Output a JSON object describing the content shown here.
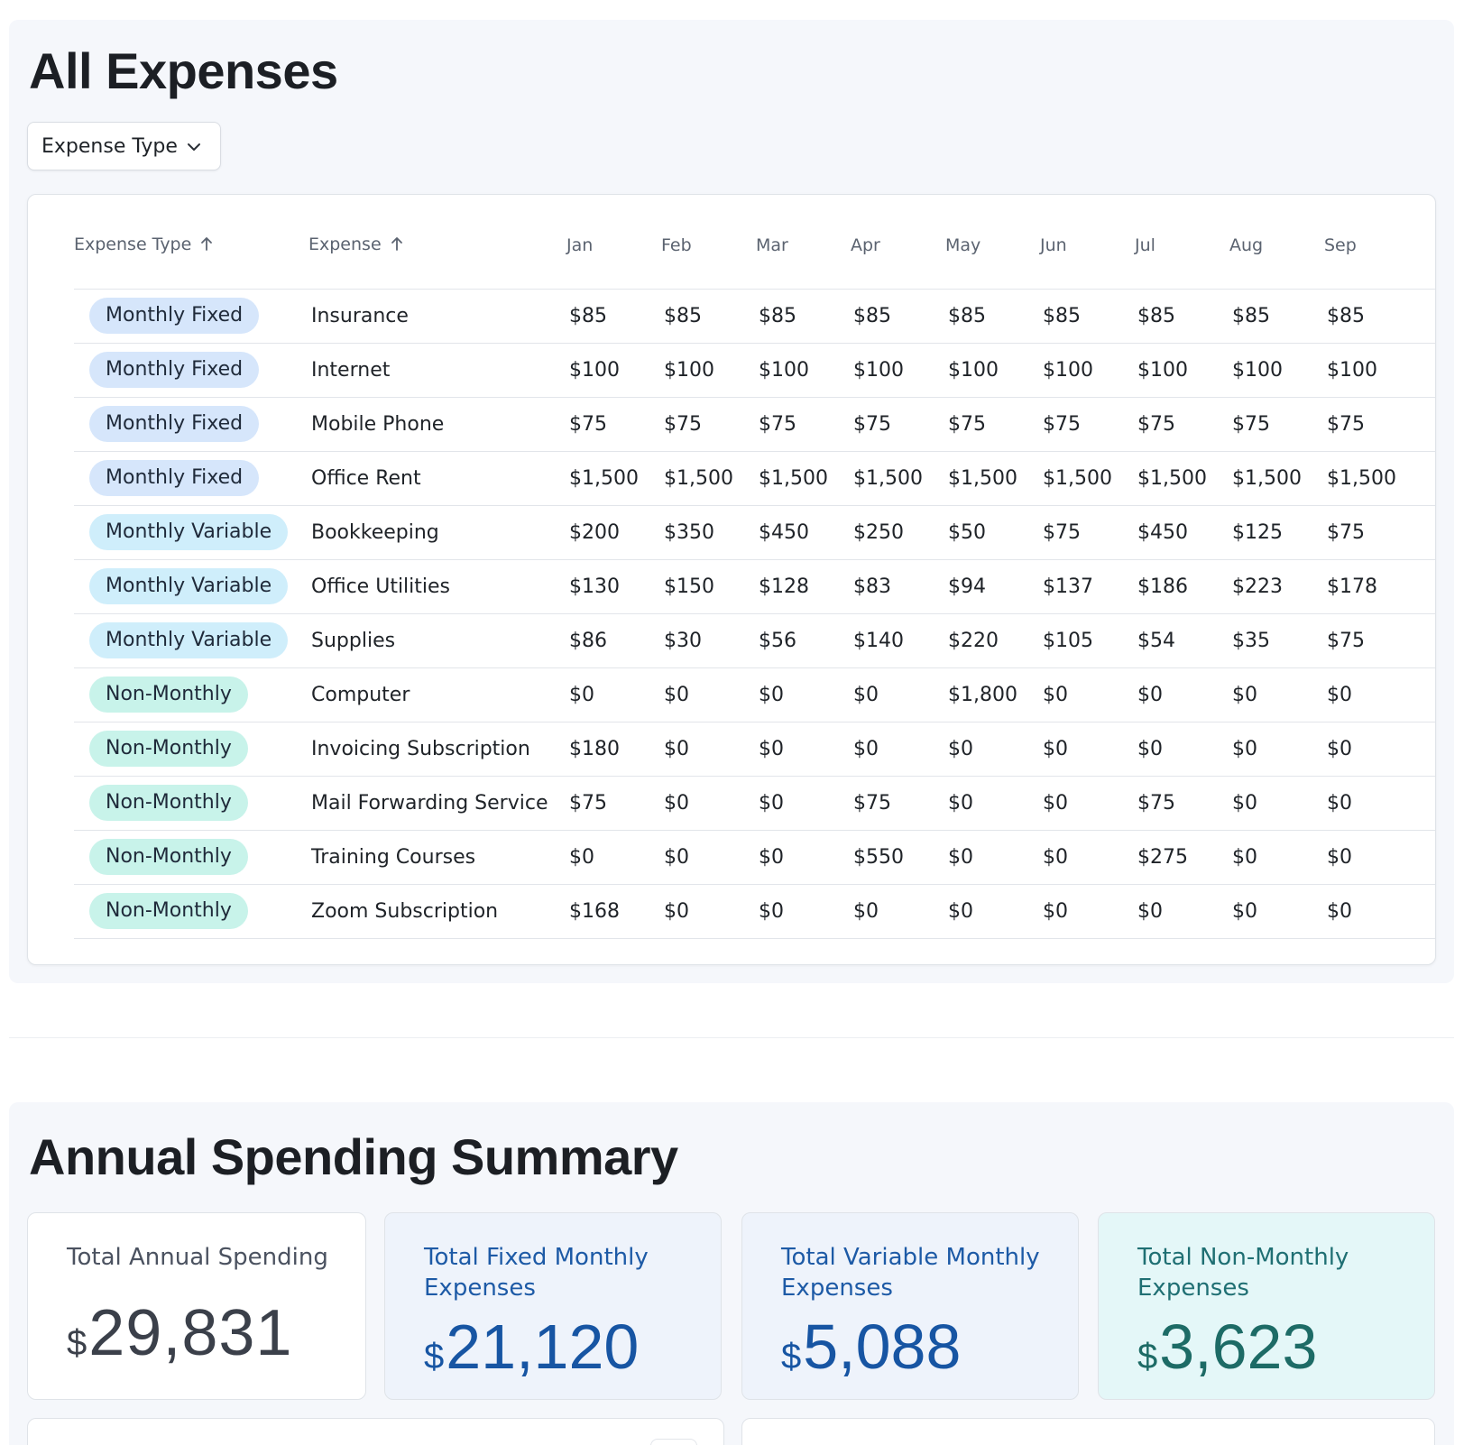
{
  "expenses": {
    "title": "All Expenses",
    "filter_label": "Expense Type",
    "columns": {
      "type": "Expense Type",
      "expense": "Expense",
      "months": [
        "Jan",
        "Feb",
        "Mar",
        "Apr",
        "May",
        "Jun",
        "Jul",
        "Aug",
        "Sep"
      ]
    },
    "rows": [
      {
        "type": "Monthly Fixed",
        "kind": "fixed",
        "expense": "Insurance",
        "values": [
          "$85",
          "$85",
          "$85",
          "$85",
          "$85",
          "$85",
          "$85",
          "$85",
          "$85"
        ]
      },
      {
        "type": "Monthly Fixed",
        "kind": "fixed",
        "expense": "Internet",
        "values": [
          "$100",
          "$100",
          "$100",
          "$100",
          "$100",
          "$100",
          "$100",
          "$100",
          "$100"
        ]
      },
      {
        "type": "Monthly Fixed",
        "kind": "fixed",
        "expense": "Mobile Phone",
        "values": [
          "$75",
          "$75",
          "$75",
          "$75",
          "$75",
          "$75",
          "$75",
          "$75",
          "$75"
        ]
      },
      {
        "type": "Monthly Fixed",
        "kind": "fixed",
        "expense": "Office Rent",
        "values": [
          "$1,500",
          "$1,500",
          "$1,500",
          "$1,500",
          "$1,500",
          "$1,500",
          "$1,500",
          "$1,500",
          "$1,500"
        ]
      },
      {
        "type": "Monthly Variable",
        "kind": "variable",
        "expense": "Bookkeeping",
        "values": [
          "$200",
          "$350",
          "$450",
          "$250",
          "$50",
          "$75",
          "$450",
          "$125",
          "$75"
        ]
      },
      {
        "type": "Monthly Variable",
        "kind": "variable",
        "expense": "Office Utilities",
        "values": [
          "$130",
          "$150",
          "$128",
          "$83",
          "$94",
          "$137",
          "$186",
          "$223",
          "$178"
        ]
      },
      {
        "type": "Monthly Variable",
        "kind": "variable",
        "expense": "Supplies",
        "values": [
          "$86",
          "$30",
          "$56",
          "$140",
          "$220",
          "$105",
          "$54",
          "$35",
          "$75"
        ]
      },
      {
        "type": "Non-Monthly",
        "kind": "nonmonthly",
        "expense": "Computer",
        "values": [
          "$0",
          "$0",
          "$0",
          "$0",
          "$1,800",
          "$0",
          "$0",
          "$0",
          "$0"
        ]
      },
      {
        "type": "Non-Monthly",
        "kind": "nonmonthly",
        "expense": "Invoicing Subscription",
        "values": [
          "$180",
          "$0",
          "$0",
          "$0",
          "$0",
          "$0",
          "$0",
          "$0",
          "$0"
        ]
      },
      {
        "type": "Non-Monthly",
        "kind": "nonmonthly",
        "expense": "Mail Forwarding Service",
        "values": [
          "$75",
          "$0",
          "$0",
          "$75",
          "$0",
          "$0",
          "$75",
          "$0",
          "$0"
        ]
      },
      {
        "type": "Non-Monthly",
        "kind": "nonmonthly",
        "expense": "Training Courses",
        "values": [
          "$0",
          "$0",
          "$0",
          "$550",
          "$0",
          "$0",
          "$275",
          "$0",
          "$0"
        ]
      },
      {
        "type": "Non-Monthly",
        "kind": "nonmonthly",
        "expense": "Zoom Subscription",
        "values": [
          "$168",
          "$0",
          "$0",
          "$0",
          "$0",
          "$0",
          "$0",
          "$0",
          "$0"
        ]
      }
    ]
  },
  "summary": {
    "title": "Annual Spending Summary",
    "cards": {
      "total": {
        "label": "Total Annual Spending",
        "currency": "$",
        "value": "29,831"
      },
      "fixed": {
        "label": "Total Fixed Monthly Expenses",
        "currency": "$",
        "value": "21,120"
      },
      "variable": {
        "label": "Total Variable Monthly Expenses",
        "currency": "$",
        "value": "5,088"
      },
      "nonmonthly": {
        "label": "Total Non-Monthly Expenses",
        "currency": "$",
        "value": "3,623"
      }
    }
  },
  "colors": {
    "fixed_badge": "#d6e6fb",
    "variable_badge": "#cfeefb",
    "nonmonthly_badge": "#c8f3ea",
    "fixed_text": "#1755a3",
    "nonmonthly_text": "#1d6b66"
  }
}
